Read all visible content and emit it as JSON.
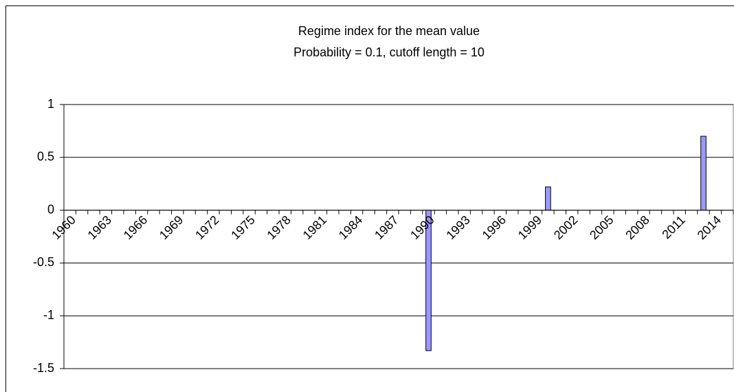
{
  "chart_data": {
    "type": "bar",
    "title": "Regime index for the mean value",
    "subtitle": "Probability = 0.1, cutoff length = 10",
    "categories": [
      "1960",
      null,
      null,
      "1963",
      null,
      null,
      "1966",
      null,
      null,
      "1969",
      null,
      null,
      "1972",
      null,
      null,
      "1975",
      null,
      null,
      "1978",
      null,
      null,
      "1981",
      null,
      null,
      "1984",
      null,
      null,
      "1987",
      null,
      null,
      "1990",
      null,
      null,
      "1993",
      null,
      null,
      "1996",
      null,
      null,
      "1999",
      null,
      null,
      "2002",
      null,
      null,
      "2005",
      null,
      null,
      "2008",
      null,
      null,
      "2011",
      null,
      null,
      "2014",
      null
    ],
    "values": [
      0,
      0,
      0,
      0,
      0,
      0,
      0,
      0,
      0,
      0,
      0,
      0,
      0,
      0,
      0,
      0,
      0,
      0,
      0,
      0,
      0,
      0,
      0,
      0,
      0,
      0,
      0,
      0,
      0,
      0,
      -1.33,
      0,
      0,
      0,
      0,
      0,
      0,
      0,
      0,
      0,
      0.22,
      0,
      0,
      0,
      0,
      0,
      0,
      0,
      0,
      0,
      0,
      0,
      0,
      0.7,
      0,
      0
    ],
    "color": "#9999ff",
    "ylim": [
      -1.5,
      1
    ],
    "yticks": [
      -1.5,
      -1,
      -0.5,
      0,
      0.5,
      1
    ],
    "grid": true
  }
}
